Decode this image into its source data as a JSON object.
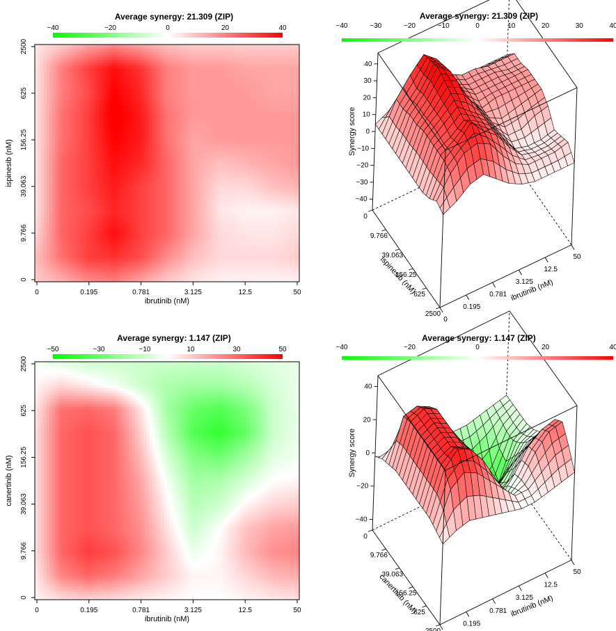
{
  "chart_data": [
    {
      "type": "heatmap",
      "title": "Average synergy: 21.309 (ZIP)",
      "xlabel": "ibrutinib (nM)",
      "ylabel": "ispinesib (nM)",
      "x_ticks": [
        "0",
        "0.195",
        "0.781",
        "3.125",
        "12.5",
        "50"
      ],
      "y_ticks": [
        "0",
        "9.766",
        "39.063",
        "156.25",
        "625",
        "2500"
      ],
      "colorbar": {
        "ticks": [
          "−40",
          "−20",
          "0",
          "20",
          "40"
        ],
        "range": [
          -40,
          40
        ]
      },
      "color_low": "#00ff00",
      "color_mid": "#ffffff",
      "color_high": "#ff0000",
      "z": [
        [
          8,
          12,
          18,
          20,
          14,
          8,
          4,
          2,
          2,
          2,
          2
        ],
        [
          10,
          22,
          30,
          32,
          28,
          18,
          10,
          6,
          6,
          6,
          8
        ],
        [
          6,
          24,
          30,
          38,
          30,
          24,
          14,
          6,
          4,
          4,
          6
        ],
        [
          4,
          24,
          28,
          34,
          30,
          24,
          14,
          4,
          2,
          2,
          4
        ],
        [
          4,
          24,
          30,
          36,
          30,
          24,
          14,
          6,
          6,
          10,
          12
        ],
        [
          4,
          24,
          30,
          38,
          34,
          24,
          14,
          10,
          12,
          14,
          16
        ],
        [
          4,
          22,
          30,
          40,
          36,
          22,
          14,
          16,
          16,
          16,
          16
        ],
        [
          4,
          22,
          30,
          42,
          36,
          22,
          16,
          16,
          16,
          16,
          16
        ],
        [
          4,
          20,
          28,
          40,
          34,
          20,
          16,
          16,
          16,
          14,
          14
        ],
        [
          4,
          20,
          30,
          38,
          32,
          20,
          16,
          16,
          14,
          14,
          14
        ],
        [
          4,
          8,
          14,
          18,
          14,
          10,
          8,
          8,
          8,
          8,
          8
        ]
      ]
    },
    {
      "type": "surface",
      "title": "Average synergy: 21.309 (ZIP)",
      "xlabel": "ibrutinib (nM)",
      "ylabel": "ispinesib (nM)",
      "zlabel": "Synergy score",
      "x_ticks": [
        "0",
        "0.195",
        "0.781",
        "3.125",
        "12.5",
        "50"
      ],
      "y_ticks": [
        "0",
        "9.766",
        "39.063",
        "156.25",
        "625",
        "2500"
      ],
      "z_ticks": [
        "−40",
        "−30",
        "−20",
        "−10",
        "0",
        "10",
        "20",
        "30",
        "40"
      ],
      "colorbar": {
        "ticks": [
          "−40",
          "−30",
          "−20",
          "−10",
          "0",
          "10",
          "20",
          "30",
          "40"
        ],
        "range": [
          -40,
          40
        ]
      }
    },
    {
      "type": "heatmap",
      "title": "Average synergy: 1.147 (ZIP)",
      "xlabel": "ibrutinib (nM)",
      "ylabel": "canertinib (nM)",
      "x_ticks": [
        "0",
        "0.195",
        "0.781",
        "3.125",
        "12.5",
        "50"
      ],
      "y_ticks": [
        "0",
        "9.766",
        "39.063",
        "156.25",
        "625",
        "2500"
      ],
      "colorbar": {
        "ticks": [
          "−50",
          "−30",
          "−10",
          "10",
          "30",
          "50"
        ],
        "range": [
          -50,
          50
        ]
      },
      "color_low": "#00ff00",
      "color_mid": "#ffffff",
      "color_high": "#ff0000",
      "z": [
        [
          2,
          6,
          8,
          6,
          4,
          2,
          0,
          0,
          2,
          4,
          6
        ],
        [
          4,
          24,
          30,
          26,
          18,
          10,
          2,
          2,
          8,
          14,
          16
        ],
        [
          6,
          30,
          38,
          34,
          24,
          10,
          -4,
          2,
          14,
          22,
          24
        ],
        [
          6,
          30,
          34,
          30,
          22,
          6,
          -10,
          0,
          12,
          18,
          20
        ],
        [
          6,
          30,
          34,
          30,
          20,
          2,
          -14,
          -10,
          2,
          8,
          10
        ],
        [
          6,
          30,
          34,
          30,
          18,
          -2,
          -18,
          -16,
          -8,
          0,
          2
        ],
        [
          6,
          30,
          34,
          30,
          14,
          -8,
          -24,
          -28,
          -18,
          -6,
          -2
        ],
        [
          6,
          30,
          34,
          30,
          10,
          -14,
          -34,
          -40,
          -30,
          -10,
          -4
        ],
        [
          4,
          28,
          30,
          26,
          6,
          -18,
          -30,
          -34,
          -26,
          -10,
          -4
        ],
        [
          2,
          8,
          4,
          -2,
          -10,
          -16,
          -18,
          -18,
          -14,
          -8,
          -4
        ],
        [
          -2,
          -6,
          -10,
          -10,
          -10,
          -10,
          -10,
          -10,
          -8,
          -6,
          -4
        ]
      ]
    },
    {
      "type": "surface",
      "title": "Average synergy: 1.147 (ZIP)",
      "xlabel": "ibrutinib (nM)",
      "ylabel": "canertinib (nM)",
      "zlabel": "Synergy score",
      "x_ticks": [
        "0",
        "0.195",
        "0.781",
        "3.125",
        "12.5",
        "50"
      ],
      "y_ticks": [
        "0",
        "9.766",
        "39.063",
        "156.25",
        "625",
        "2500"
      ],
      "z_ticks": [
        "−40",
        "−20",
        "0",
        "20",
        "40"
      ],
      "colorbar": {
        "ticks": [
          "−40",
          "−20",
          "0",
          "20",
          "40"
        ],
        "range": [
          -40,
          40
        ]
      }
    }
  ]
}
